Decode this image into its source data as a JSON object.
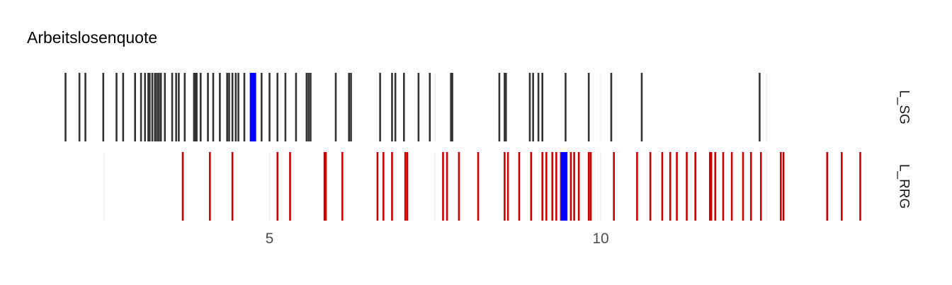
{
  "chart_data": {
    "type": "rug",
    "title": "Arbeitslosenquote",
    "xlabel": "",
    "ylabel": "",
    "xlim": [
      2.5,
      14.0
    ],
    "x_ticks": [
      5,
      10
    ],
    "x_tick_labels": [
      "5",
      "10"
    ],
    "minor_gridlines": [
      2.5,
      7.5,
      12.5
    ],
    "grid": true,
    "colors": {
      "L_SG": "#333333",
      "L_RRG": "#cc0000",
      "highlight": "#0000ff"
    },
    "series": [
      {
        "name": "L_SG",
        "highlight": 4.75,
        "values": [
          1.92,
          2.13,
          2.22,
          2.49,
          2.69,
          2.79,
          2.97,
          3.06,
          3.12,
          3.17,
          3.19,
          3.23,
          3.27,
          3.3,
          3.33,
          3.36,
          3.42,
          3.53,
          3.59,
          3.63,
          3.72,
          3.86,
          3.88,
          3.9,
          3.96,
          4.07,
          4.15,
          4.25,
          4.36,
          4.39,
          4.44,
          4.49,
          4.53,
          4.62,
          4.88,
          5.0,
          5.12,
          5.24,
          5.4,
          5.56,
          5.59,
          5.62,
          6.0,
          6.2,
          6.23,
          6.67,
          6.85,
          6.9,
          7.03,
          7.25,
          7.42,
          7.74,
          7.76,
          8.47,
          8.55,
          8.57,
          8.93,
          8.98,
          9.06,
          9.12,
          9.47,
          9.82,
          10.16,
          10.62,
          12.4
        ]
      },
      {
        "name": "L_RRG",
        "highlight": 9.45,
        "values": [
          3.69,
          4.1,
          4.44,
          5.12,
          5.31,
          5.83,
          5.85,
          6.1,
          6.63,
          6.72,
          6.85,
          7.05,
          7.08,
          7.62,
          7.68,
          7.86,
          8.15,
          8.55,
          8.6,
          8.77,
          8.95,
          9.12,
          9.18,
          9.27,
          9.33,
          9.4,
          9.55,
          9.6,
          9.67,
          9.82,
          9.85,
          10.2,
          10.55,
          10.75,
          10.93,
          11.05,
          11.15,
          11.3,
          11.43,
          11.65,
          11.67,
          11.73,
          11.85,
          11.98,
          12.15,
          12.27,
          12.42,
          12.72,
          12.76,
          13.42,
          13.64,
          13.92
        ]
      }
    ]
  }
}
